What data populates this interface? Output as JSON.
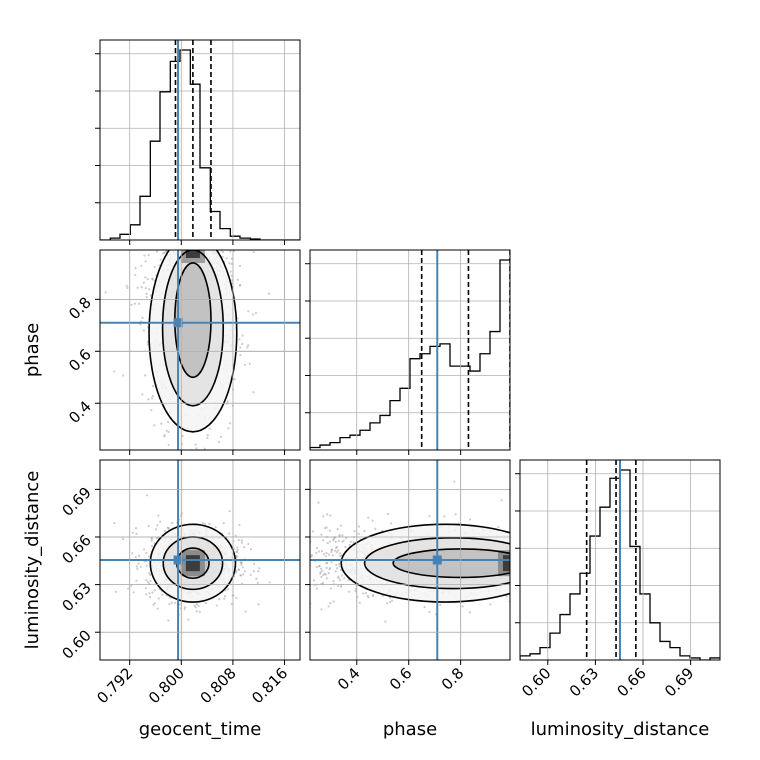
{
  "chart_data": {
    "type": "corner",
    "parameters": [
      "geocent_time",
      "phase",
      "luminosity_distance"
    ],
    "truths": {
      "geocent_time": 0.7995,
      "phase": 0.71,
      "luminosity_distance": 0.6455
    },
    "quantiles": {
      "geocent_time": [
        0.7991,
        0.8018,
        0.8046
      ],
      "phase": [
        0.65,
        0.83,
        0.99
      ],
      "luminosity_distance": [
        0.6245,
        0.643,
        0.6555
      ]
    },
    "ranges": {
      "geocent_time": [
        0.7874,
        0.8184
      ],
      "phase": [
        0.22,
        0.99
      ],
      "luminosity_distance": [
        0.5825,
        0.7085
      ]
    },
    "ticks": {
      "geocent_time": {
        "values": [
          0.792,
          0.8,
          0.808,
          0.816
        ],
        "labels": [
          "0.792",
          "0.800",
          "0.808",
          "0.816"
        ]
      },
      "phase_x": {
        "values": [
          0.4,
          0.6,
          0.8
        ],
        "labels": [
          "0.4",
          "0.6",
          "0.8"
        ]
      },
      "phase_y": {
        "values": [
          0.4,
          0.6,
          0.8
        ],
        "labels": [
          "0.4",
          "0.6",
          "0.8"
        ]
      },
      "luminosity_distance_x": {
        "values": [
          0.6,
          0.63,
          0.66,
          0.69
        ],
        "labels": [
          "0.60",
          "0.63",
          "0.66",
          "0.69"
        ]
      },
      "luminosity_distance_y": {
        "values": [
          0.6,
          0.63,
          0.66,
          0.69
        ],
        "labels": [
          "0.60",
          "0.63",
          "0.66",
          "0.69"
        ]
      }
    },
    "histograms": {
      "geocent_time": {
        "edges": [
          0.7874,
          0.789,
          0.7905,
          0.7921,
          0.7936,
          0.7952,
          0.7967,
          0.7983,
          0.7998,
          0.8014,
          0.8029,
          0.8045,
          0.806,
          0.8076,
          0.8091,
          0.8107,
          0.8122,
          0.8138,
          0.8153,
          0.8169,
          0.8184
        ],
        "counts": [
          0,
          0.01,
          0.03,
          0.08,
          0.23,
          0.52,
          0.78,
          0.94,
          1.0,
          0.82,
          0.38,
          0.15,
          0.06,
          0.02,
          0.01,
          0.005,
          0,
          0,
          0,
          0
        ]
      },
      "phase": {
        "edges": [
          0.22,
          0.2585,
          0.297,
          0.3355,
          0.374,
          0.4125,
          0.451,
          0.4895,
          0.528,
          0.5665,
          0.605,
          0.6435,
          0.682,
          0.7205,
          0.759,
          0.7975,
          0.836,
          0.8745,
          0.913,
          0.9515,
          0.99
        ],
        "counts": [
          0.01,
          0.02,
          0.03,
          0.05,
          0.06,
          0.08,
          0.11,
          0.14,
          0.2,
          0.25,
          0.37,
          0.39,
          0.42,
          0.43,
          0.34,
          0.34,
          0.32,
          0.39,
          0.48,
          0.77
        ]
      },
      "luminosity_distance": {
        "edges": [
          0.5825,
          0.5888,
          0.5951,
          0.6014,
          0.6077,
          0.614,
          0.6203,
          0.6266,
          0.6329,
          0.6392,
          0.6455,
          0.6518,
          0.6581,
          0.6644,
          0.6707,
          0.677,
          0.6833,
          0.6896,
          0.6959,
          0.7022,
          0.7085
        ],
        "counts": [
          0.02,
          0.03,
          0.06,
          0.13,
          0.22,
          0.32,
          0.42,
          0.6,
          0.74,
          0.88,
          0.92,
          0.55,
          0.32,
          0.18,
          0.09,
          0.06,
          0.02,
          0.01,
          0,
          0.01
        ]
      }
    },
    "contours": {
      "geocent_time_phase": {
        "levels": [
          {
            "center": [
              0.8018,
              0.67
            ],
            "radius": [
              0.0068,
              0.38
            ]
          },
          {
            "center": [
              0.8018,
              0.69
            ],
            "radius": [
              0.0047,
              0.3
            ]
          },
          {
            "center": [
              0.8018,
              0.72
            ],
            "radius": [
              0.0028,
              0.22
            ]
          }
        ],
        "core": [
          0.8018,
          0.99
        ],
        "cloud_center": [
          0.8018,
          0.66
        ],
        "cloud_spread": [
          0.0036,
          0.21
        ]
      },
      "geocent_time_luminosity_distance": {
        "levels": [
          {
            "center": [
              0.8018,
              0.6435
            ],
            "radius": [
              0.0066,
              0.0245
            ]
          },
          {
            "center": [
              0.8018,
              0.6435
            ],
            "radius": [
              0.0046,
              0.0165
            ]
          },
          {
            "center": [
              0.8018,
              0.6435
            ],
            "radius": [
              0.0025,
              0.0095
            ]
          }
        ],
        "core": [
          0.8018,
          0.6435
        ],
        "cloud_center": [
          0.8018,
          0.6435
        ],
        "cloud_spread": [
          0.0036,
          0.012
        ]
      },
      "phase_luminosity_distance": {
        "levels": [
          {
            "center": [
              0.74,
              0.6435
            ],
            "radius": [
              0.4,
              0.0245
            ]
          },
          {
            "center": [
              0.77,
              0.6435
            ],
            "radius": [
              0.34,
              0.016
            ]
          },
          {
            "center": [
              0.8,
              0.6435
            ],
            "radius": [
              0.26,
              0.009
            ]
          }
        ],
        "core": [
          0.99,
          0.6435
        ],
        "cloud_center": [
          0.7,
          0.6435
        ],
        "cloud_spread": [
          0.22,
          0.012
        ]
      }
    },
    "colors": {
      "truth": "#4682b4",
      "line": "#000000",
      "grid": "#b0b0b0",
      "points": "#9a9a9a"
    },
    "grid": true
  }
}
